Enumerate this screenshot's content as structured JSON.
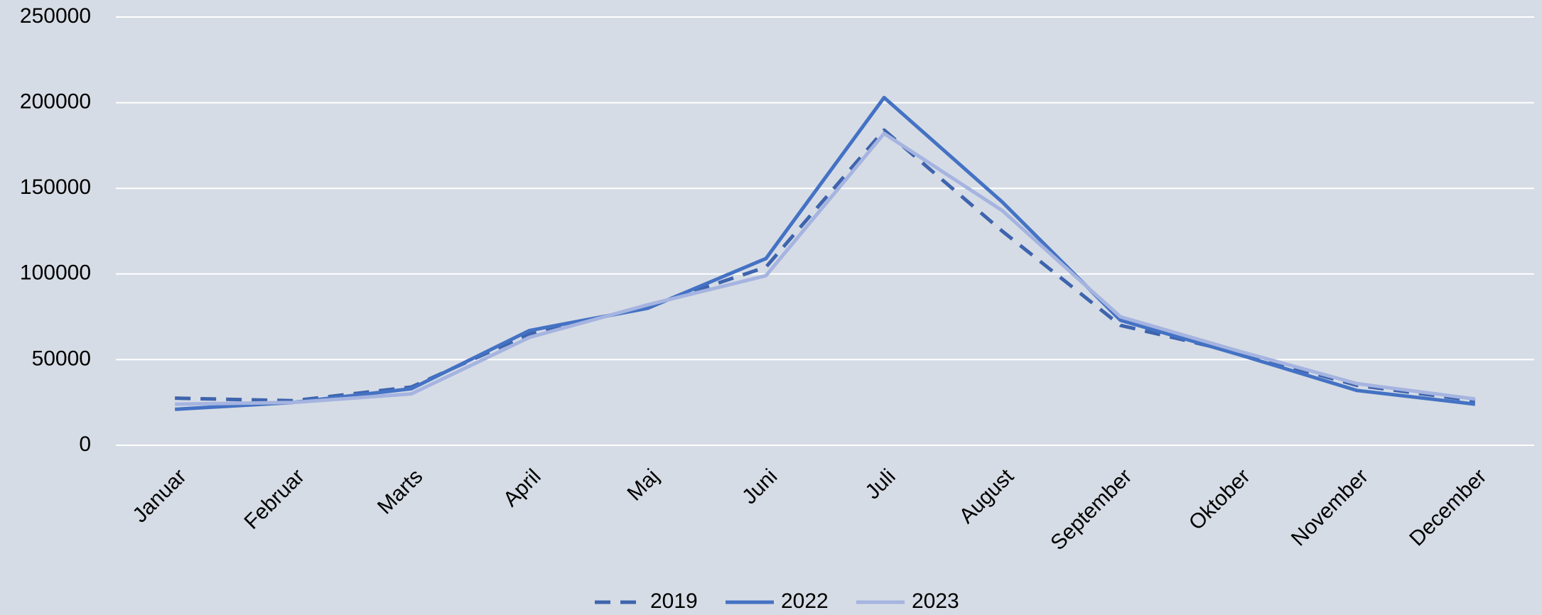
{
  "chart_data": {
    "type": "line",
    "categories": [
      "Januar",
      "Februar",
      "Marts",
      "April",
      "Maj",
      "Juni",
      "Juli",
      "August",
      "September",
      "Oktober",
      "November",
      "December"
    ],
    "series": [
      {
        "name": "2019",
        "color": "#3e64ad",
        "style": "dashed",
        "values": [
          27500,
          26000,
          34000,
          65000,
          81000,
          104000,
          184000,
          125000,
          70000,
          54000,
          35000,
          26000
        ]
      },
      {
        "name": "2022",
        "color": "#4472c4",
        "style": "solid",
        "values": [
          21000,
          25000,
          33000,
          67000,
          80000,
          109000,
          203000,
          142000,
          73000,
          53000,
          32000,
          24000
        ]
      },
      {
        "name": "2023",
        "color": "#a5b4e0",
        "style": "solid",
        "values": [
          24000,
          25000,
          30000,
          63000,
          82000,
          99000,
          182000,
          137000,
          75000,
          55000,
          36000,
          27000
        ]
      }
    ],
    "ylim": [
      0,
      250000
    ],
    "yticks": [
      0,
      50000,
      100000,
      150000,
      200000,
      250000
    ],
    "grid": true,
    "legend": "bottom"
  }
}
